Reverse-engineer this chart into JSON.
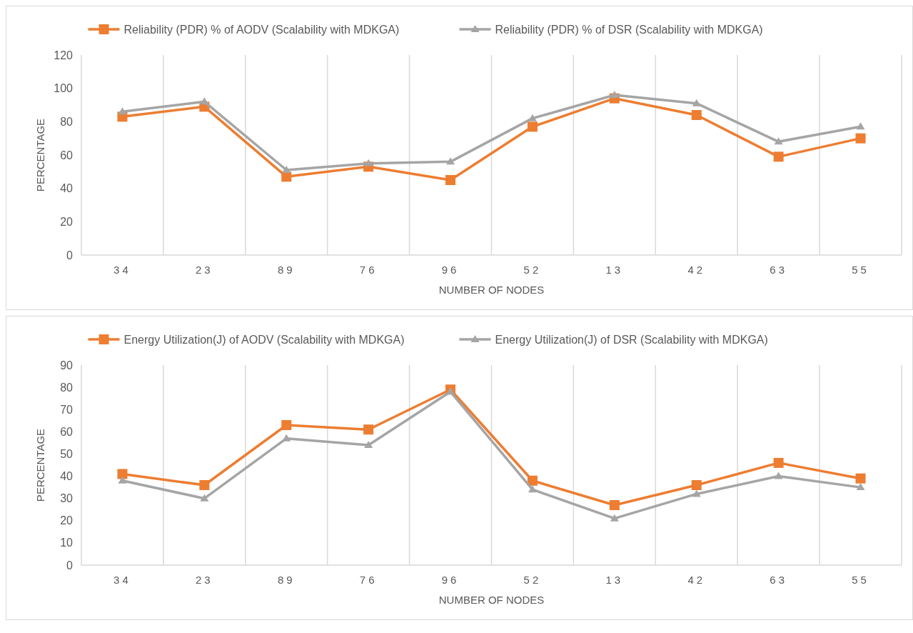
{
  "chart_data": [
    {
      "type": "line",
      "xlabel": "NUMBER OF NODES",
      "ylabel": "PERCENTAGE",
      "categories": [
        "34",
        "23",
        "89",
        "76",
        "96",
        "52",
        "13",
        "42",
        "63",
        "55"
      ],
      "series": [
        {
          "name": "Reliability (PDR) % of AODV (Scalability with MDKGA)",
          "color": "#ed7d31",
          "marker": "square",
          "values": [
            83,
            89,
            47,
            53,
            45,
            77,
            94,
            84,
            59,
            70
          ]
        },
        {
          "name": "Reliability (PDR) % of DSR (Scalability with MDKGA)",
          "color": "#a5a5a5",
          "marker": "triangle",
          "values": [
            86,
            92,
            51,
            55,
            56,
            82,
            96,
            91,
            68,
            77
          ]
        }
      ],
      "ylim": [
        0,
        120
      ],
      "yticks": [
        0,
        20,
        40,
        60,
        80,
        100,
        120
      ],
      "grid": "x",
      "legend": "top"
    },
    {
      "type": "line",
      "xlabel": "NUMBER OF NODES",
      "ylabel": "PERCENTAGE",
      "categories": [
        "34",
        "23",
        "89",
        "76",
        "96",
        "52",
        "13",
        "42",
        "63",
        "55"
      ],
      "series": [
        {
          "name": "Energy Utilization(J) of AODV (Scalability with MDKGA)",
          "color": "#ed7d31",
          "marker": "square",
          "values": [
            41,
            36,
            63,
            61,
            79,
            38,
            27,
            36,
            46,
            39
          ]
        },
        {
          "name": "Energy Utilization(J) of DSR (Scalability with MDKGA)",
          "color": "#a5a5a5",
          "marker": "triangle",
          "values": [
            38,
            30,
            57,
            54,
            78,
            34,
            21,
            32,
            40,
            35
          ]
        }
      ],
      "ylim": [
        0,
        90
      ],
      "yticks": [
        0,
        10,
        20,
        30,
        40,
        50,
        60,
        70,
        80,
        90
      ],
      "grid": "x",
      "legend": "top"
    }
  ]
}
